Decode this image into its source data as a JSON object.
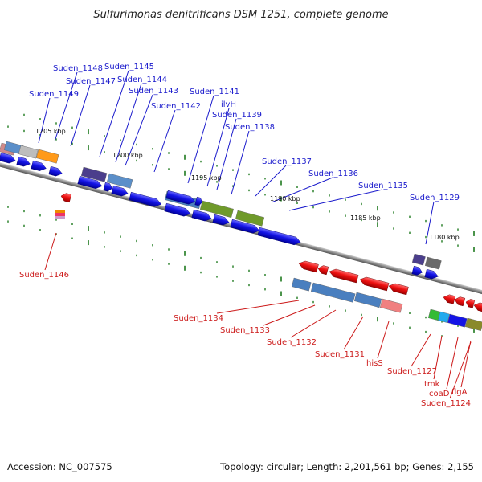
{
  "title": "Sulfurimonas denitrificans DSM 1251, complete genome",
  "footer": {
    "accession": "Accession: NC_007575",
    "summary": "Topology: circular; Length: 2,201,561 bp; Genes: 2,155"
  },
  "colors": {
    "forward_label": "#1a1acc",
    "reverse_label": "#cc1a1a",
    "forward_arrow": "#1414e6",
    "reverse_arrow": "#ee1111",
    "backbone": "#8a8a8a",
    "tick": "#1e7a1e"
  },
  "kbp_labels": [
    {
      "text": "1205 kbp"
    },
    {
      "text": "1200 kbp"
    },
    {
      "text": "1195 kbp"
    },
    {
      "text": "1190 kbp"
    },
    {
      "text": "1185 kbp"
    },
    {
      "text": "1180 kbp"
    }
  ],
  "forward_genes": [
    {
      "name": "Suden_1149"
    },
    {
      "name": "Suden_1148"
    },
    {
      "name": "Suden_1147"
    },
    {
      "name": "Suden_1145"
    },
    {
      "name": "Suden_1144"
    },
    {
      "name": "Suden_1143"
    },
    {
      "name": "Suden_1142"
    },
    {
      "name": "Suden_1141"
    },
    {
      "name": "ilvH"
    },
    {
      "name": "Suden_1139"
    },
    {
      "name": "Suden_1138"
    },
    {
      "name": "Suden_1137"
    },
    {
      "name": "Suden_1136"
    },
    {
      "name": "Suden_1135"
    },
    {
      "name": "Suden_1129"
    }
  ],
  "reverse_genes": [
    {
      "name": "Suden_1146"
    },
    {
      "name": "Suden_1134"
    },
    {
      "name": "Suden_1133"
    },
    {
      "name": "Suden_1132"
    },
    {
      "name": "Suden_1131"
    },
    {
      "name": "hisS"
    },
    {
      "name": "Suden_1127"
    },
    {
      "name": "tmk"
    },
    {
      "name": "coaD"
    },
    {
      "name": "flgA"
    },
    {
      "name": "Suden_1124"
    }
  ]
}
